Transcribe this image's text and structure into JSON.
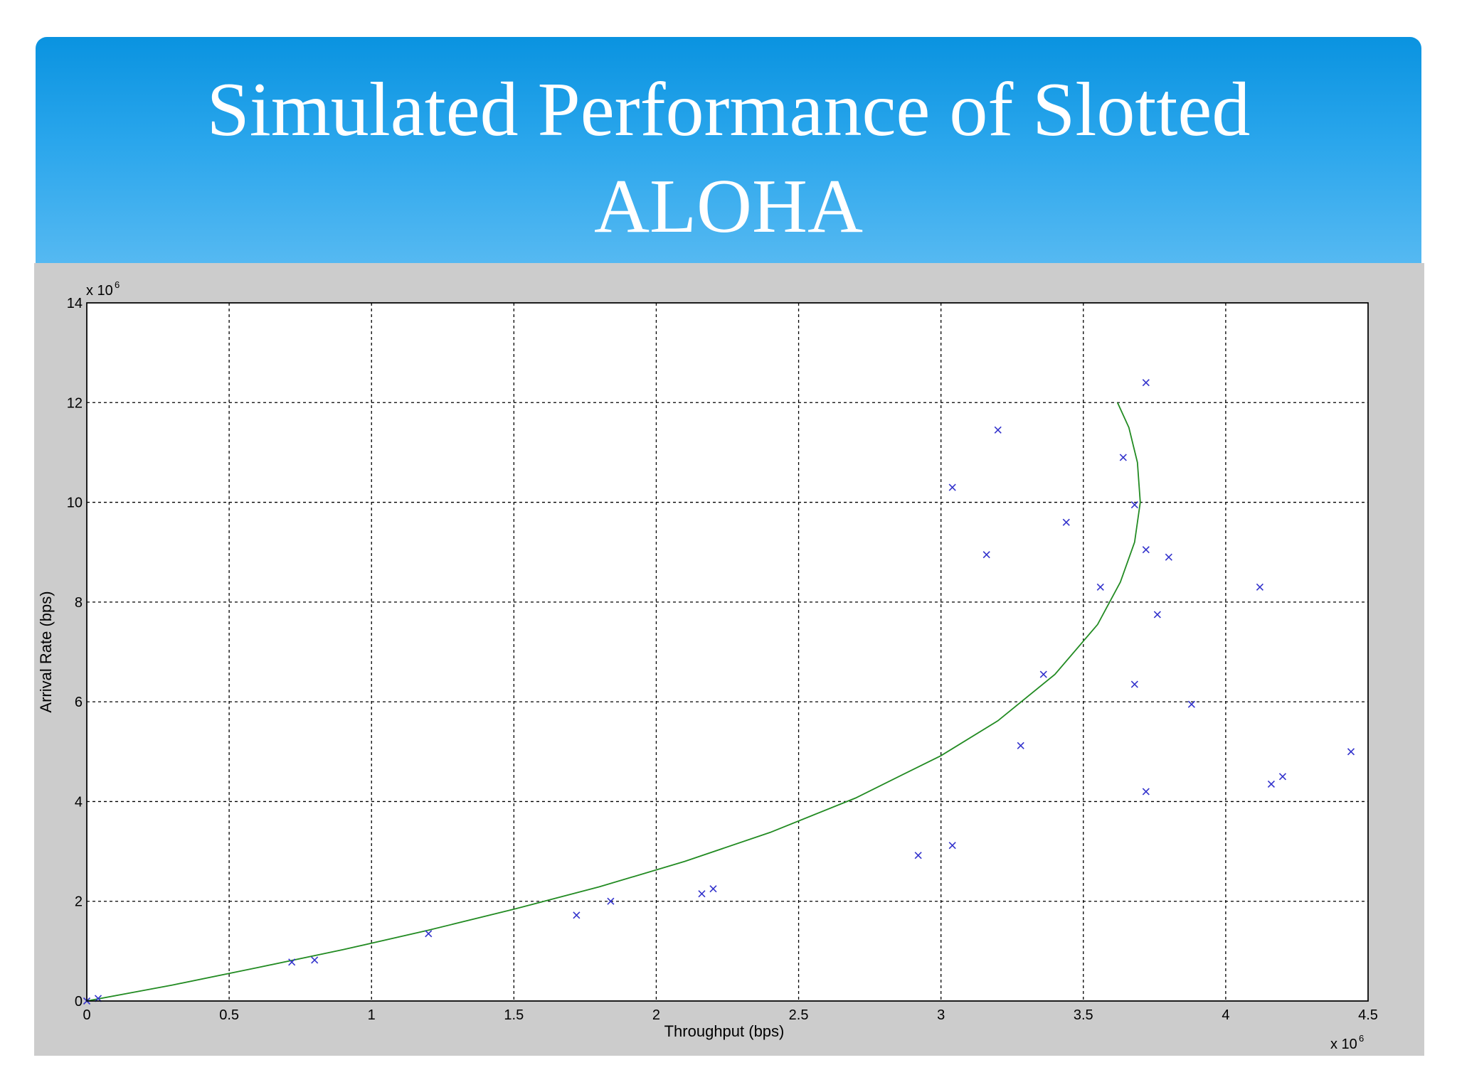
{
  "slide": {
    "title": "Simulated Performance of Slotted ALOHA"
  },
  "colors": {
    "banner_top": "#0a93e0",
    "banner_bottom": "#58baf2",
    "figure_background": "#cccccc",
    "plot_background": "#ffffff",
    "curve": "#228b22",
    "markers": "#3333cc"
  },
  "chart_data": {
    "type": "scatter",
    "title": "",
    "xlabel": "Throughput (bps)",
    "ylabel": "Arrival Rate (bps)",
    "x_multiplier_label": "x 10",
    "x_multiplier_exp": "6",
    "y_multiplier_label": "x 10",
    "y_multiplier_exp": "6",
    "xlim": [
      0,
      4.5
    ],
    "ylim": [
      0,
      14
    ],
    "xticks": [
      "0",
      "0.5",
      "1",
      "1.5",
      "2",
      "2.5",
      "3",
      "3.5",
      "4",
      "4.5"
    ],
    "yticks": [
      "0",
      "2",
      "4",
      "6",
      "8",
      "10",
      "12",
      "14"
    ],
    "grid": true,
    "series": [
      {
        "style": "line",
        "color": "#228b22",
        "x": [
          0,
          0.3,
          0.6,
          0.9,
          1.2,
          1.5,
          1.8,
          2.1,
          2.4,
          2.7,
          3.0,
          3.2,
          3.4,
          3.55,
          3.63,
          3.68,
          3.7,
          3.69,
          3.66,
          3.62
        ],
        "y": [
          0,
          0.32,
          0.67,
          1.03,
          1.42,
          1.84,
          2.29,
          2.8,
          3.38,
          4.07,
          4.92,
          5.62,
          6.55,
          7.55,
          8.4,
          9.2,
          10.0,
          10.8,
          11.5,
          12.0
        ]
      },
      {
        "style": "marker",
        "marker": "x",
        "color": "#3333cc",
        "x": [
          0.0,
          0.04,
          0.72,
          0.8,
          1.2,
          1.72,
          1.84,
          2.16,
          2.2,
          2.92,
          3.04,
          3.04,
          3.16,
          3.2,
          3.28,
          3.36,
          3.44,
          3.56,
          3.64,
          3.68,
          3.68,
          3.72,
          3.72,
          3.72,
          3.76,
          3.8,
          3.88,
          4.12,
          4.16,
          4.2,
          4.44
        ],
        "y": [
          0.0,
          0.05,
          0.78,
          0.82,
          1.35,
          1.72,
          2.0,
          2.15,
          2.25,
          2.92,
          3.12,
          10.3,
          8.95,
          11.45,
          5.12,
          6.55,
          9.6,
          8.3,
          10.9,
          9.95,
          6.35,
          12.4,
          9.05,
          4.2,
          7.75,
          8.9,
          5.95,
          8.3,
          4.35,
          4.5,
          5.0
        ]
      }
    ]
  }
}
